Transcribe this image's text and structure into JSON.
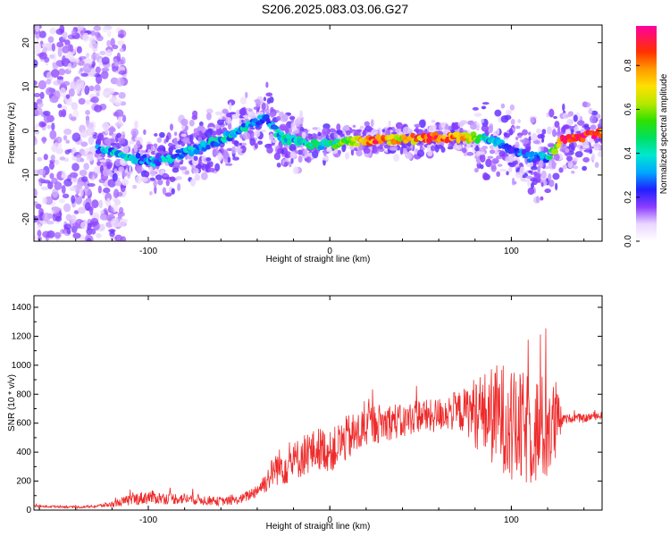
{
  "title": "S206.2025.083.03.06.G27",
  "colors": {
    "snr_line": "#ee2a2a",
    "frame": "#000000"
  },
  "chart_data": [
    {
      "type": "heatmap",
      "xlabel": "Height of straight line (km)",
      "ylabel": "Frequency (Hz)",
      "colorbar_label": "Normalized spectral amplitude",
      "xlim": [
        -163,
        150
      ],
      "ylim": [
        -25,
        24
      ],
      "x_ticks": [
        -100,
        0,
        100
      ],
      "y_ticks": [
        -20,
        -10,
        0,
        10,
        20
      ],
      "x_tick_labels": [
        "-100",
        "0",
        "100"
      ],
      "y_tick_labels": [
        "-20",
        "-10",
        "0",
        "10",
        "20"
      ],
      "colorbar_range": [
        0,
        0.98
      ],
      "colorbar_ticks": [
        0.0,
        0.2,
        0.4,
        0.6,
        0.8
      ],
      "colorbar_tick_labels": [
        "0.0",
        "0.2",
        "0.4",
        "0.6",
        "0.8"
      ],
      "ridge": {
        "x": [
          -125,
          -110,
          -95,
          -80,
          -60,
          -45,
          -35,
          -30,
          -25,
          -20,
          -10,
          0,
          10,
          25,
          40,
          55,
          70,
          80,
          90,
          100,
          110,
          120,
          128,
          135,
          142,
          148
        ],
        "y": [
          -4,
          -6,
          -7,
          -5,
          -2,
          1,
          3,
          0,
          -2,
          -2,
          -3,
          -3,
          -2.5,
          -2,
          -2,
          -1.5,
          -1.5,
          -1.5,
          -2,
          -4,
          -6,
          -6,
          -2,
          -1.5,
          -1,
          -0.5
        ],
        "amplitude": [
          0.3,
          0.35,
          0.3,
          0.3,
          0.35,
          0.35,
          0.3,
          0.3,
          0.45,
          0.35,
          0.4,
          0.45,
          0.55,
          0.85,
          0.7,
          0.85,
          0.8,
          0.6,
          0.3,
          0.25,
          0.25,
          0.3,
          0.9,
          0.95,
          0.95,
          0.85
        ]
      }
    },
    {
      "type": "line",
      "xlabel": "Height of straight line (km)",
      "ylabel": "SNR (10 * v/v)",
      "xlim": [
        -163,
        150
      ],
      "ylim": [
        0,
        1480
      ],
      "x_ticks": [
        -100,
        0,
        100
      ],
      "y_ticks": [
        0,
        200,
        400,
        600,
        800,
        1000,
        1200,
        1400
      ],
      "x_tick_labels": [
        "-100",
        "0",
        "100"
      ],
      "y_tick_labels": [
        "0",
        "200",
        "400",
        "600",
        "800",
        "1000",
        "1200",
        "1400"
      ],
      "series": [
        {
          "x": [
            -163,
            -150,
            -140,
            -130,
            -120,
            -110,
            -100,
            -90,
            -80,
            -70,
            -60,
            -50,
            -45,
            -40,
            -35,
            -30,
            -25,
            -20,
            -15,
            -10,
            -5,
            0,
            5,
            10,
            15,
            20,
            25,
            30,
            35,
            40,
            45,
            50,
            55,
            60,
            65,
            70,
            75,
            80,
            85,
            90,
            95,
            100,
            105,
            110,
            115,
            120,
            125,
            128,
            130,
            135,
            140,
            145,
            150
          ],
          "y": [
            25,
            25,
            20,
            25,
            40,
            70,
            90,
            80,
            80,
            70,
            60,
            70,
            100,
            140,
            200,
            290,
            310,
            330,
            380,
            400,
            430,
            400,
            450,
            500,
            520,
            580,
            600,
            600,
            620,
            600,
            640,
            660,
            640,
            660,
            680,
            680,
            690,
            680,
            660,
            650,
            650,
            560,
            550,
            560,
            550,
            560,
            600,
            620,
            630,
            640,
            630,
            650,
            650
          ],
          "spread": [
            8,
            8,
            8,
            10,
            20,
            40,
            50,
            40,
            40,
            35,
            30,
            30,
            40,
            50,
            80,
            120,
            140,
            140,
            150,
            150,
            150,
            140,
            160,
            160,
            160,
            150,
            140,
            130,
            130,
            120,
            120,
            120,
            120,
            120,
            130,
            140,
            160,
            250,
            300,
            350,
            380,
            400,
            400,
            400,
            400,
            380,
            300,
            40,
            30,
            30,
            30,
            30,
            30
          ]
        }
      ]
    }
  ]
}
